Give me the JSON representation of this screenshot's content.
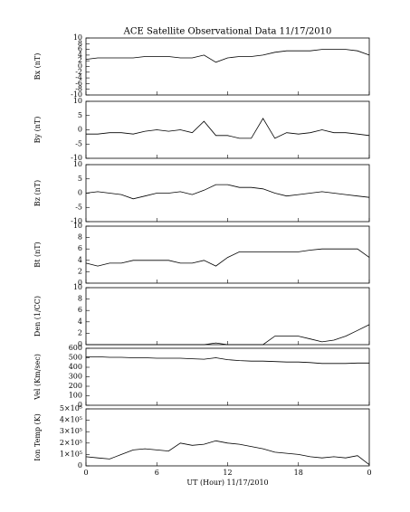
{
  "chart_data": [
    {
      "type": "line",
      "title": "ACE Satellite Observational Data   11/17/2010",
      "ylabel": "Bx (nT)",
      "x": [
        0,
        1,
        2,
        3,
        4,
        5,
        6,
        7,
        8,
        9,
        10,
        11,
        12,
        13,
        14,
        15,
        16,
        17,
        18,
        19,
        20,
        21,
        22,
        23,
        24
      ],
      "values": [
        2.5,
        3,
        3,
        3,
        3,
        3.5,
        3.5,
        3.5,
        3,
        3,
        4,
        1.5,
        3,
        3.5,
        3.5,
        4,
        5,
        5.5,
        5.5,
        5.5,
        6,
        6,
        6,
        5.5,
        4
      ],
      "ylim": [
        -10,
        10
      ],
      "yticks": [
        -10,
        -8,
        -6,
        -4,
        -2,
        0,
        2,
        4,
        6,
        8,
        10
      ],
      "color": "#000000"
    },
    {
      "type": "line",
      "ylabel": "By (nT)",
      "x": [
        0,
        1,
        2,
        3,
        4,
        5,
        6,
        7,
        8,
        9,
        10,
        11,
        12,
        13,
        14,
        15,
        16,
        17,
        18,
        19,
        20,
        21,
        22,
        23,
        24
      ],
      "values": [
        -1.5,
        -1.5,
        -1,
        -1,
        -1.5,
        -0.5,
        0,
        -0.5,
        0,
        -1,
        3,
        -2,
        -2,
        -3,
        -3,
        4,
        -3,
        -1,
        -1.5,
        -1,
        0,
        -1,
        -1,
        -1.5,
        -2
      ],
      "ylim": [
        -10,
        10
      ],
      "yticks": [
        -10,
        -5,
        0,
        5,
        10
      ],
      "color": "#000000"
    },
    {
      "type": "line",
      "ylabel": "Bz (nT)",
      "x": [
        0,
        1,
        2,
        3,
        4,
        5,
        6,
        7,
        8,
        9,
        10,
        11,
        12,
        13,
        14,
        15,
        16,
        17,
        18,
        19,
        20,
        21,
        22,
        23,
        24
      ],
      "values": [
        0,
        0.5,
        0,
        -0.5,
        -2,
        -1,
        0,
        0,
        0.5,
        -0.5,
        1,
        3,
        3,
        2,
        2,
        1.5,
        0,
        -1,
        -0.5,
        0,
        0.5,
        0,
        -0.5,
        -1,
        -1.5
      ],
      "ylim": [
        -10,
        10
      ],
      "yticks": [
        -10,
        -5,
        0,
        5,
        10
      ],
      "color": "#000000"
    },
    {
      "type": "line",
      "ylabel": "Bt (nT)",
      "x": [
        0,
        1,
        2,
        3,
        4,
        5,
        6,
        7,
        8,
        9,
        10,
        11,
        12,
        13,
        14,
        15,
        16,
        17,
        18,
        19,
        20,
        21,
        22,
        23,
        24
      ],
      "values": [
        3.5,
        3,
        3.5,
        3.5,
        4,
        4,
        4,
        4,
        3.5,
        3.5,
        4,
        3,
        4.5,
        5.5,
        5.5,
        5.5,
        5.5,
        5.5,
        5.5,
        5.8,
        6,
        6,
        6,
        6,
        4.5
      ],
      "ylim": [
        0,
        10
      ],
      "yticks": [
        0,
        2,
        4,
        6,
        8,
        10
      ],
      "color": "#000000"
    },
    {
      "type": "line",
      "ylabel": "Den (1/CC)",
      "x": [
        0,
        1,
        2,
        3,
        4,
        5,
        6,
        7,
        8,
        9,
        10,
        11,
        12,
        13,
        14,
        15,
        16,
        17,
        18,
        19,
        20,
        21,
        22,
        23,
        24
      ],
      "values": [
        0,
        0,
        0,
        0,
        0,
        0,
        0,
        0,
        0,
        0,
        0,
        0.3,
        0,
        0,
        0,
        0,
        1.5,
        1.5,
        1.5,
        1,
        0.5,
        0.8,
        1.5,
        2.5,
        3.5
      ],
      "ylim": [
        0,
        10
      ],
      "yticks": [
        0,
        2,
        4,
        6,
        8,
        10
      ],
      "color": "#000000"
    },
    {
      "type": "line",
      "ylabel": "Vel (Km/sec)",
      "x": [
        0,
        1,
        2,
        3,
        4,
        5,
        6,
        7,
        8,
        9,
        10,
        11,
        12,
        13,
        14,
        15,
        16,
        17,
        18,
        19,
        20,
        21,
        22,
        23,
        24
      ],
      "values": [
        510,
        510,
        505,
        505,
        500,
        500,
        495,
        495,
        495,
        490,
        485,
        500,
        480,
        470,
        465,
        465,
        460,
        455,
        455,
        450,
        440,
        440,
        440,
        445,
        445
      ],
      "ylim": [
        0,
        600
      ],
      "yticks": [
        0,
        100,
        200,
        300,
        400,
        500,
        600
      ],
      "color": "#000000"
    },
    {
      "type": "line",
      "ylabel": "Ion Temp (K)",
      "xlabel": "UT (Hour)   11/17/2010",
      "x": [
        0,
        1,
        2,
        3,
        4,
        5,
        6,
        7,
        8,
        9,
        10,
        11,
        12,
        13,
        14,
        15,
        16,
        17,
        18,
        19,
        20,
        21,
        22,
        23,
        24
      ],
      "values": [
        80000,
        70000,
        60000,
        100000,
        140000,
        150000,
        140000,
        130000,
        200000,
        180000,
        190000,
        220000,
        200000,
        190000,
        170000,
        150000,
        120000,
        110000,
        100000,
        80000,
        70000,
        80000,
        70000,
        90000,
        10000
      ],
      "ylim": [
        0,
        500000
      ],
      "yticks": [
        0,
        {
          "value": 100000,
          "label": "1×10⁵"
        },
        {
          "value": 200000,
          "label": "2×10⁵"
        },
        {
          "value": 300000,
          "label": "3×10⁵"
        },
        {
          "value": 400000,
          "label": "4×10⁵"
        },
        {
          "value": 500000,
          "label": "5×10⁵"
        }
      ],
      "xlim": [
        0,
        24
      ],
      "xticks": [
        0,
        6,
        12,
        18,
        {
          "value": 24,
          "label": "0"
        }
      ],
      "color": "#000000"
    }
  ]
}
